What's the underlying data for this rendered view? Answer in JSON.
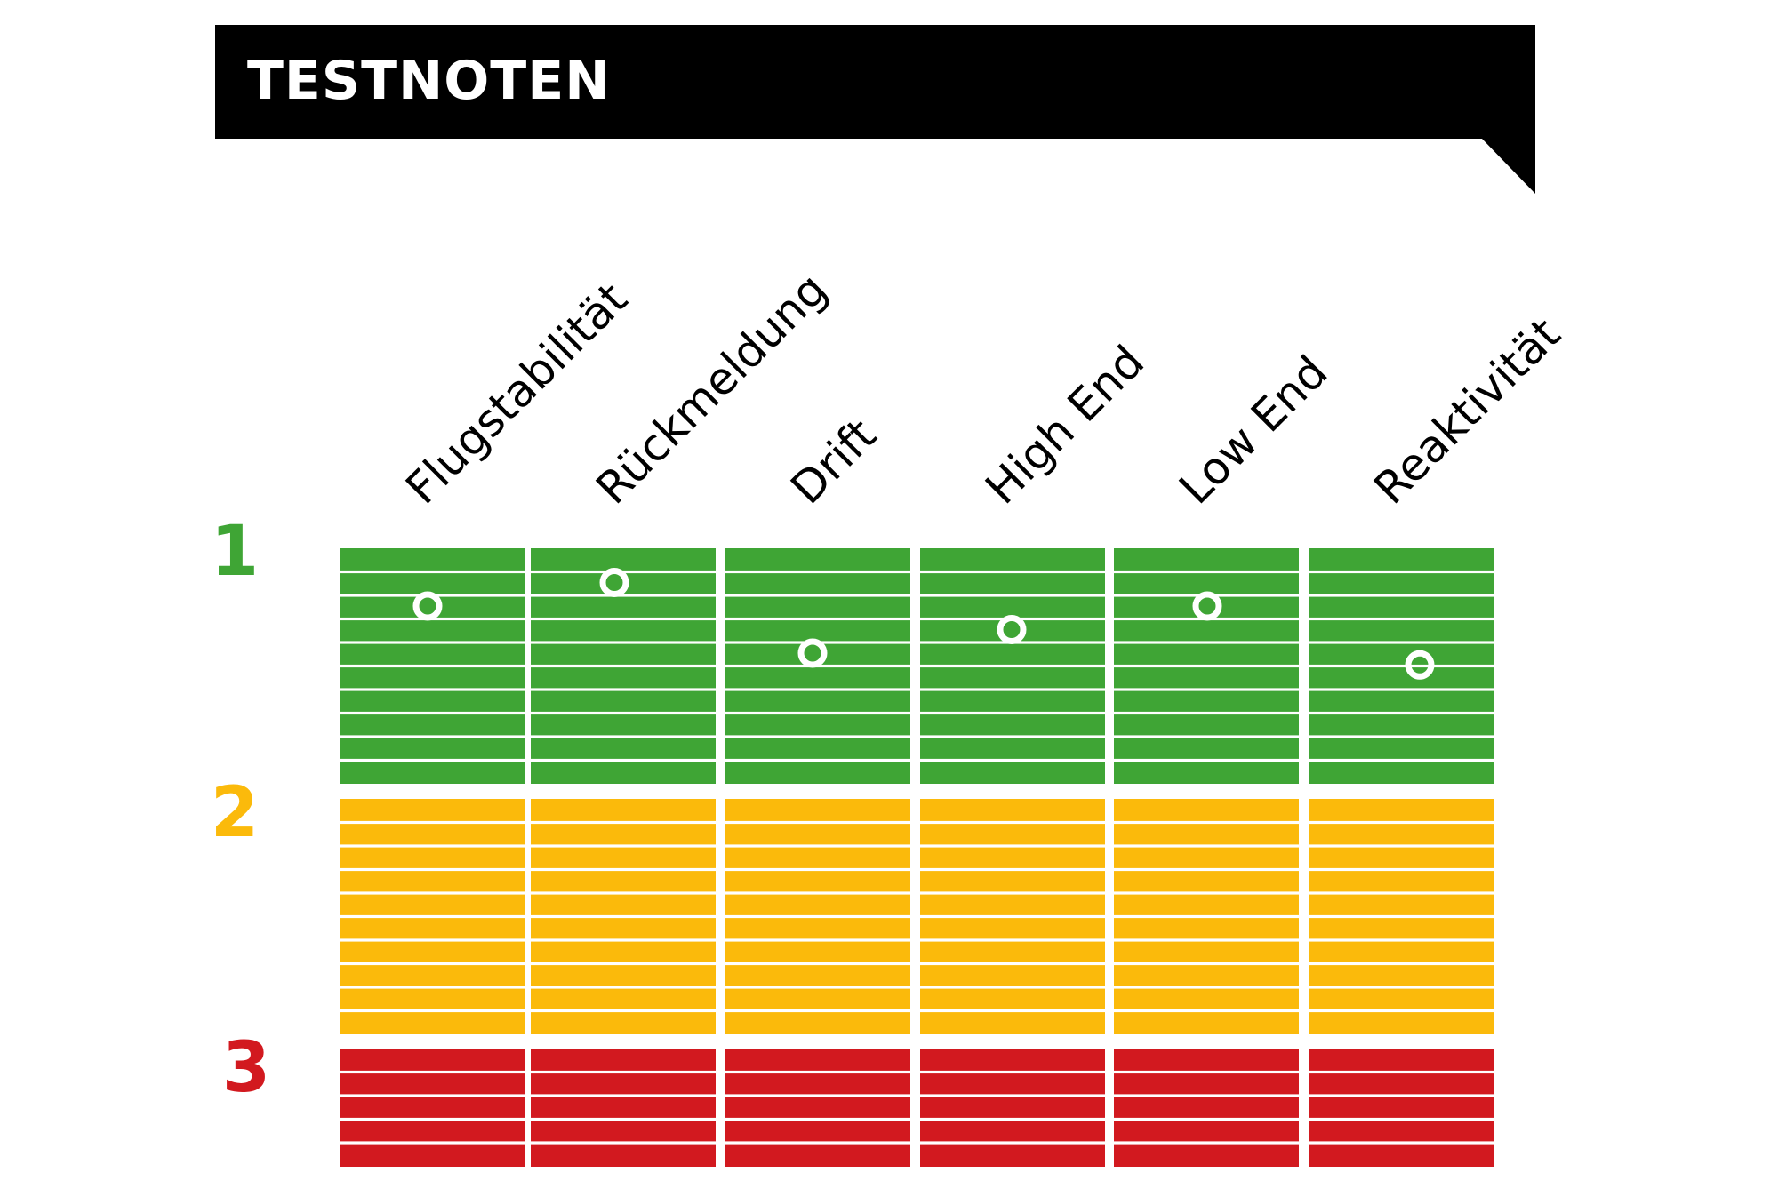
{
  "header": {
    "title": "TESTNOTEN",
    "background": "#000000",
    "text_color": "#ffffff"
  },
  "chart_data": {
    "type": "scatter",
    "title": "TESTNOTEN",
    "categories": [
      "Flugstabilität",
      "Rückmeldung",
      "Drift",
      "High End",
      "Low End",
      "Reaktivität"
    ],
    "grades": [
      {
        "label": "1",
        "color": "#3fa535"
      },
      {
        "label": "2",
        "color": "#fbba0b"
      },
      {
        "label": "3",
        "color": "#d2191f"
      }
    ],
    "grade_range": [
      1,
      3
    ],
    "values": [
      1.2,
      1.1,
      1.4,
      1.3,
      1.2,
      1.45
    ],
    "marker_color": "#ffffff",
    "xlabel": "",
    "ylabel": ""
  }
}
